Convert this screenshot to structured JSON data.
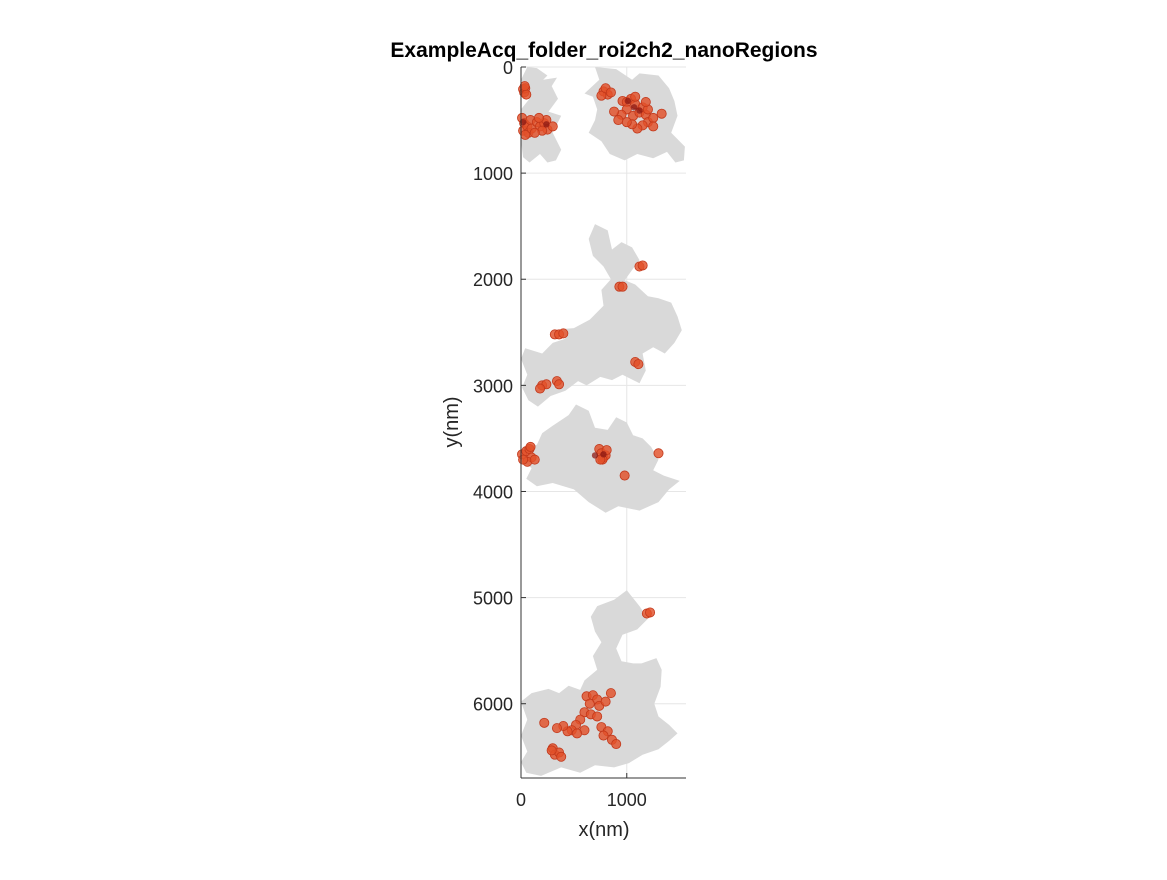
{
  "chart_data": {
    "type": "scatter",
    "title": "ExampleAcq_folder_roi2ch2_nanoRegions",
    "xlabel": "x(nm)",
    "ylabel": "y(nm)",
    "xlim": [
      0,
      1560
    ],
    "ylim": [
      0,
      6700
    ],
    "y_axis_direction": "reversed",
    "xticks": [
      0,
      1000
    ],
    "yticks": [
      0,
      1000,
      2000,
      3000,
      4000,
      5000,
      6000
    ],
    "grid": true,
    "colors": {
      "region": "#d9d9d9",
      "point": "#e2502a",
      "point_edge": "#c2381b",
      "dense_center": "#8c1a14",
      "axis": "#333333",
      "grid": "#e6e6e6"
    },
    "regions": [
      [
        [
          60,
          0
        ],
        [
          150,
          10
        ],
        [
          250,
          80
        ],
        [
          210,
          120
        ],
        [
          340,
          100
        ],
        [
          290,
          180
        ],
        [
          350,
          300
        ],
        [
          260,
          420
        ],
        [
          380,
          460
        ],
        [
          300,
          620
        ],
        [
          380,
          780
        ],
        [
          330,
          880
        ],
        [
          250,
          900
        ],
        [
          180,
          820
        ],
        [
          80,
          900
        ],
        [
          20,
          850
        ],
        [
          0,
          700
        ],
        [
          40,
          600
        ],
        [
          0,
          400
        ],
        [
          80,
          300
        ],
        [
          40,
          200
        ],
        [
          0,
          120
        ]
      ],
      [
        [
          700,
          0
        ],
        [
          900,
          20
        ],
        [
          1050,
          120
        ],
        [
          1120,
          60
        ],
        [
          1300,
          80
        ],
        [
          1400,
          200
        ],
        [
          1450,
          320
        ],
        [
          1480,
          460
        ],
        [
          1420,
          620
        ],
        [
          1550,
          750
        ],
        [
          1540,
          880
        ],
        [
          1460,
          900
        ],
        [
          1380,
          800
        ],
        [
          1250,
          860
        ],
        [
          1100,
          820
        ],
        [
          980,
          880
        ],
        [
          840,
          820
        ],
        [
          760,
          700
        ],
        [
          640,
          620
        ],
        [
          700,
          500
        ],
        [
          720,
          400
        ],
        [
          680,
          280
        ],
        [
          600,
          250
        ],
        [
          740,
          120
        ]
      ],
      [
        [
          700,
          1480
        ],
        [
          820,
          1540
        ],
        [
          860,
          1720
        ],
        [
          950,
          1650
        ],
        [
          1050,
          1700
        ],
        [
          1120,
          1820
        ],
        [
          1060,
          1900
        ],
        [
          980,
          2010
        ],
        [
          1080,
          2050
        ],
        [
          1200,
          2160
        ],
        [
          1300,
          2180
        ],
        [
          1420,
          2220
        ],
        [
          1480,
          2350
        ],
        [
          1520,
          2480
        ],
        [
          1450,
          2600
        ],
        [
          1360,
          2700
        ],
        [
          1250,
          2640
        ],
        [
          1150,
          2700
        ],
        [
          1180,
          2860
        ],
        [
          1120,
          2980
        ],
        [
          960,
          2900
        ],
        [
          860,
          2950
        ],
        [
          750,
          2920
        ],
        [
          620,
          3000
        ],
        [
          540,
          2960
        ],
        [
          420,
          3050
        ],
        [
          280,
          3100
        ],
        [
          160,
          3200
        ],
        [
          70,
          3140
        ],
        [
          10,
          3020
        ],
        [
          60,
          2900
        ],
        [
          0,
          2750
        ],
        [
          40,
          2650
        ],
        [
          200,
          2700
        ],
        [
          300,
          2600
        ],
        [
          420,
          2560
        ],
        [
          380,
          2470
        ],
        [
          500,
          2460
        ],
        [
          650,
          2380
        ],
        [
          780,
          2250
        ],
        [
          760,
          2100
        ],
        [
          850,
          2000
        ],
        [
          780,
          1880
        ],
        [
          680,
          1780
        ],
        [
          640,
          1620
        ]
      ],
      [
        [
          520,
          3180
        ],
        [
          640,
          3240
        ],
        [
          700,
          3400
        ],
        [
          820,
          3420
        ],
        [
          900,
          3300
        ],
        [
          1000,
          3350
        ],
        [
          1060,
          3470
        ],
        [
          1150,
          3500
        ],
        [
          1230,
          3580
        ],
        [
          1300,
          3700
        ],
        [
          1250,
          3800
        ],
        [
          1350,
          3850
        ],
        [
          1500,
          3900
        ],
        [
          1400,
          3980
        ],
        [
          1300,
          4100
        ],
        [
          1120,
          4180
        ],
        [
          920,
          4140
        ],
        [
          800,
          4200
        ],
        [
          640,
          4100
        ],
        [
          500,
          3980
        ],
        [
          300,
          3920
        ],
        [
          150,
          3950
        ],
        [
          50,
          3880
        ],
        [
          100,
          3780
        ],
        [
          0,
          3700
        ],
        [
          20,
          3580
        ],
        [
          150,
          3560
        ],
        [
          200,
          3450
        ],
        [
          300,
          3380
        ],
        [
          450,
          3280
        ]
      ],
      [
        [
          1000,
          4930
        ],
        [
          1120,
          5080
        ],
        [
          1200,
          5200
        ],
        [
          1100,
          5300
        ],
        [
          960,
          5350
        ],
        [
          900,
          5480
        ],
        [
          950,
          5600
        ],
        [
          1060,
          5620
        ],
        [
          1140,
          5620
        ],
        [
          1280,
          5570
        ],
        [
          1330,
          5680
        ],
        [
          1320,
          5840
        ],
        [
          1260,
          6000
        ],
        [
          1300,
          6120
        ],
        [
          1400,
          6200
        ],
        [
          1480,
          6280
        ],
        [
          1400,
          6350
        ],
        [
          1300,
          6430
        ],
        [
          1150,
          6480
        ],
        [
          1020,
          6560
        ],
        [
          880,
          6600
        ],
        [
          700,
          6580
        ],
        [
          560,
          6650
        ],
        [
          380,
          6600
        ],
        [
          190,
          6680
        ],
        [
          50,
          6650
        ],
        [
          0,
          6550
        ],
        [
          60,
          6450
        ],
        [
          0,
          6300
        ],
        [
          60,
          6150
        ],
        [
          0,
          5980
        ],
        [
          100,
          5900
        ],
        [
          260,
          5860
        ],
        [
          360,
          5900
        ],
        [
          450,
          5830
        ],
        [
          560,
          5870
        ],
        [
          600,
          5780
        ],
        [
          720,
          5680
        ],
        [
          680,
          5550
        ],
        [
          760,
          5420
        ],
        [
          700,
          5320
        ],
        [
          660,
          5180
        ],
        [
          720,
          5080
        ],
        [
          880,
          5020
        ]
      ]
    ],
    "series": [
      {
        "values": [
          [
            20,
            210
          ],
          [
            30,
            240
          ],
          [
            40,
            200
          ],
          [
            50,
            260
          ],
          [
            35,
            180
          ],
          [
            10,
            480
          ],
          [
            30,
            530
          ],
          [
            20,
            600
          ],
          [
            60,
            560
          ],
          [
            90,
            500
          ],
          [
            70,
            620
          ],
          [
            40,
            640
          ],
          [
            100,
            580
          ],
          [
            150,
            520
          ],
          [
            180,
            560
          ],
          [
            220,
            530
          ],
          [
            250,
            590
          ],
          [
            240,
            500
          ],
          [
            300,
            560
          ],
          [
            200,
            600
          ],
          [
            130,
            620
          ],
          [
            170,
            480
          ],
          [
            780,
            230
          ],
          [
            820,
            260
          ],
          [
            760,
            270
          ],
          [
            800,
            200
          ],
          [
            850,
            240
          ],
          [
            960,
            320
          ],
          [
            1000,
            330
          ],
          [
            1040,
            300
          ],
          [
            1080,
            350
          ],
          [
            1000,
            400
          ],
          [
            950,
            450
          ],
          [
            1060,
            460
          ],
          [
            1120,
            430
          ],
          [
            1150,
            380
          ],
          [
            1180,
            450
          ],
          [
            1200,
            520
          ],
          [
            1150,
            550
          ],
          [
            1100,
            580
          ],
          [
            1050,
            540
          ],
          [
            1000,
            520
          ],
          [
            920,
            500
          ],
          [
            880,
            420
          ],
          [
            1250,
            480
          ],
          [
            1330,
            440
          ],
          [
            1200,
            400
          ],
          [
            1180,
            330
          ],
          [
            1080,
            280
          ],
          [
            1250,
            560
          ],
          [
            1120,
            1880
          ],
          [
            1150,
            1870
          ],
          [
            930,
            2070
          ],
          [
            960,
            2070
          ],
          [
            320,
            2520
          ],
          [
            360,
            2520
          ],
          [
            400,
            2510
          ],
          [
            1080,
            2780
          ],
          [
            1110,
            2800
          ],
          [
            200,
            3000
          ],
          [
            240,
            2990
          ],
          [
            180,
            3030
          ],
          [
            340,
            2960
          ],
          [
            360,
            2990
          ],
          [
            10,
            3650
          ],
          [
            50,
            3620
          ],
          [
            80,
            3600
          ],
          [
            100,
            3680
          ],
          [
            60,
            3720
          ],
          [
            20,
            3700
          ],
          [
            130,
            3700
          ],
          [
            90,
            3580
          ],
          [
            740,
            3600
          ],
          [
            760,
            3640
          ],
          [
            780,
            3680
          ],
          [
            800,
            3660
          ],
          [
            770,
            3700
          ],
          [
            810,
            3610
          ],
          [
            750,
            3700
          ],
          [
            980,
            3850
          ],
          [
            1300,
            3640
          ],
          [
            1190,
            5150
          ],
          [
            1220,
            5140
          ],
          [
            620,
            5930
          ],
          [
            680,
            5920
          ],
          [
            720,
            5960
          ],
          [
            650,
            6000
          ],
          [
            600,
            6080
          ],
          [
            660,
            6100
          ],
          [
            740,
            6020
          ],
          [
            800,
            5980
          ],
          [
            850,
            5900
          ],
          [
            720,
            6120
          ],
          [
            760,
            6220
          ],
          [
            820,
            6260
          ],
          [
            860,
            6340
          ],
          [
            900,
            6380
          ],
          [
            780,
            6300
          ],
          [
            560,
            6150
          ],
          [
            520,
            6200
          ],
          [
            480,
            6250
          ],
          [
            440,
            6260
          ],
          [
            400,
            6210
          ],
          [
            600,
            6250
          ],
          [
            530,
            6280
          ],
          [
            220,
            6180
          ],
          [
            340,
            6230
          ],
          [
            300,
            6420
          ],
          [
            320,
            6480
          ],
          [
            360,
            6460
          ],
          [
            380,
            6500
          ],
          [
            290,
            6440
          ]
        ]
      }
    ],
    "dense_centers": [
      [
        1010,
        320
      ],
      [
        1070,
        380
      ],
      [
        20,
        520
      ],
      [
        240,
        540
      ],
      [
        780,
        3650
      ],
      [
        700,
        3660
      ],
      [
        1120,
        410
      ]
    ]
  }
}
